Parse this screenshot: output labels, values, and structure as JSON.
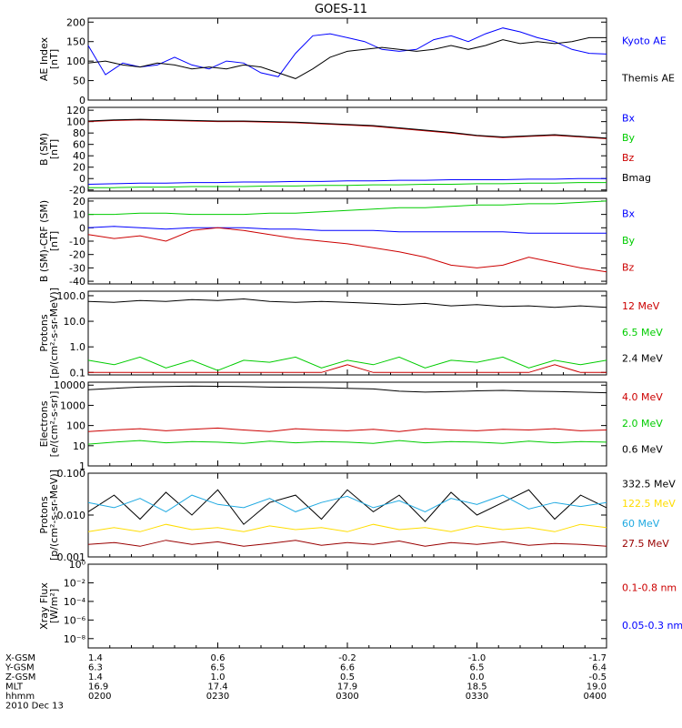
{
  "title": "GOES-11",
  "footer": {
    "rows": [
      {
        "label": "X-GSM",
        "values": [
          "1.4",
          "0.6",
          "-0.2",
          "-1.0",
          "-1.7"
        ]
      },
      {
        "label": "Y-GSM",
        "values": [
          "6.3",
          "6.5",
          "6.6",
          "6.5",
          "6.4"
        ]
      },
      {
        "label": "Z-GSM",
        "values": [
          "1.4",
          "1.0",
          "0.5",
          "0.0",
          "-0.5"
        ]
      },
      {
        "label": "MLT",
        "values": [
          "16.9",
          "17.4",
          "17.9",
          "18.5",
          "19.0"
        ]
      },
      {
        "label": "hhmm",
        "values": [
          "0200",
          "0230",
          "0300",
          "0330",
          "0400"
        ]
      }
    ],
    "date": "2010 Dec 13"
  },
  "chart_data": [
    {
      "type": "line",
      "ylabel": "AE Index\n[nT]",
      "ylog": false,
      "ylim": [
        0,
        210
      ],
      "yticks": [
        0,
        50,
        100,
        150,
        200
      ],
      "ytick_labels": [
        "0",
        "50",
        "100",
        "150",
        "200"
      ],
      "x": [
        0,
        4,
        8,
        12,
        16,
        20,
        24,
        28,
        32,
        36,
        40,
        44,
        48,
        52,
        56,
        60,
        64,
        68,
        72,
        76,
        80,
        84,
        88,
        92,
        96,
        100,
        104,
        108,
        112,
        116,
        120
      ],
      "series": [
        {
          "name": "Kyoto AE",
          "color": "#0000ff",
          "values": [
            140,
            65,
            95,
            85,
            90,
            110,
            90,
            80,
            100,
            95,
            70,
            60,
            120,
            165,
            170,
            160,
            150,
            130,
            125,
            130,
            155,
            165,
            150,
            170,
            185,
            175,
            160,
            150,
            130,
            120,
            118
          ]
        },
        {
          "name": "Themis AE",
          "color": "#000000",
          "values": [
            95,
            100,
            90,
            85,
            95,
            90,
            80,
            85,
            80,
            90,
            85,
            70,
            55,
            80,
            110,
            125,
            130,
            135,
            130,
            125,
            130,
            140,
            130,
            140,
            155,
            145,
            150,
            145,
            150,
            160,
            160
          ]
        }
      ]
    },
    {
      "type": "line",
      "ylabel": "B (SM)\n[nT]",
      "ylog": false,
      "ylim": [
        -22,
        125
      ],
      "yticks": [
        -20,
        0,
        20,
        40,
        60,
        80,
        100,
        120
      ],
      "ytick_labels": [
        "-20",
        "0",
        "20",
        "40",
        "60",
        "80",
        "100",
        "120"
      ],
      "x": [
        0,
        6,
        12,
        18,
        24,
        30,
        36,
        42,
        48,
        54,
        60,
        66,
        72,
        78,
        84,
        90,
        96,
        102,
        108,
        114,
        120
      ],
      "series": [
        {
          "name": "Bx",
          "color": "#0000ff",
          "values": [
            -10,
            -9,
            -8,
            -8,
            -7,
            -7,
            -6,
            -6,
            -5,
            -5,
            -4,
            -4,
            -3,
            -3,
            -2,
            -2,
            -2,
            -1,
            -1,
            0,
            0
          ]
        },
        {
          "name": "By",
          "color": "#00cc00",
          "values": [
            -16,
            -16,
            -15,
            -15,
            -14,
            -14,
            -14,
            -13,
            -13,
            -12,
            -12,
            -11,
            -11,
            -10,
            -10,
            -9,
            -9,
            -8,
            -8,
            -7,
            -7
          ]
        },
        {
          "name": "Bz",
          "color": "#cc0000",
          "values": [
            100,
            102,
            103,
            102,
            101,
            100,
            100,
            99,
            98,
            96,
            94,
            92,
            88,
            84,
            80,
            75,
            72,
            74,
            76,
            73,
            70
          ]
        },
        {
          "name": "Bmag",
          "color": "#000000",
          "values": [
            101,
            103,
            104,
            103,
            102,
            101,
            101,
            100,
            99,
            97,
            95,
            93,
            89,
            85,
            81,
            76,
            73,
            75,
            77,
            74,
            71
          ]
        }
      ]
    },
    {
      "type": "line",
      "ylabel": "B (SM)-CRF (SM)\n[nT]",
      "ylog": false,
      "ylim": [
        -42,
        22
      ],
      "yticks": [
        -40,
        -30,
        -20,
        -10,
        0,
        10,
        20
      ],
      "ytick_labels": [
        "-40",
        "-30",
        "-20",
        "-10",
        "0",
        "10",
        "20"
      ],
      "x": [
        0,
        6,
        12,
        18,
        24,
        30,
        36,
        42,
        48,
        54,
        60,
        66,
        72,
        78,
        84,
        90,
        96,
        102,
        108,
        114,
        120
      ],
      "series": [
        {
          "name": "Bx",
          "color": "#0000ff",
          "values": [
            0,
            1,
            0,
            -1,
            0,
            0,
            0,
            -1,
            -1,
            -2,
            -2,
            -2,
            -3,
            -3,
            -3,
            -3,
            -3,
            -4,
            -4,
            -4,
            -4
          ]
        },
        {
          "name": "By",
          "color": "#00cc00",
          "values": [
            10,
            10,
            11,
            11,
            10,
            10,
            10,
            11,
            11,
            12,
            13,
            14,
            15,
            15,
            16,
            17,
            17,
            18,
            18,
            19,
            20
          ]
        },
        {
          "name": "Bz",
          "color": "#cc0000",
          "values": [
            -5,
            -8,
            -6,
            -10,
            -2,
            0,
            -2,
            -5,
            -8,
            -10,
            -12,
            -15,
            -18,
            -22,
            -28,
            -30,
            -28,
            -22,
            -26,
            -30,
            -33
          ]
        }
      ]
    },
    {
      "type": "line",
      "ylabel": "Protons\n[p/(cm²-s-sr-MeV)]",
      "ylog": true,
      "ylim": [
        0.08,
        150
      ],
      "yticks": [
        0.1,
        1,
        10,
        100
      ],
      "ytick_labels": [
        "0.1",
        "1.0",
        "10.0",
        "100.0"
      ],
      "x": [
        0,
        6,
        12,
        18,
        24,
        30,
        36,
        42,
        48,
        54,
        60,
        66,
        72,
        78,
        84,
        90,
        96,
        102,
        108,
        114,
        120
      ],
      "series": [
        {
          "name": "12 MeV",
          "color": "#cc0000",
          "values": [
            0.1,
            0.1,
            0.1,
            0.1,
            0.1,
            0.1,
            0.1,
            0.1,
            0.1,
            0.1,
            0.2,
            0.1,
            0.1,
            0.1,
            0.1,
            0.1,
            0.1,
            0.1,
            0.2,
            0.1,
            0.1
          ]
        },
        {
          "name": "6.5 MeV",
          "color": "#00cc00",
          "values": [
            0.3,
            0.2,
            0.4,
            0.15,
            0.3,
            0.12,
            0.3,
            0.25,
            0.4,
            0.15,
            0.3,
            0.2,
            0.4,
            0.15,
            0.3,
            0.25,
            0.4,
            0.15,
            0.3,
            0.2,
            0.3
          ]
        },
        {
          "name": "2.4 MeV",
          "color": "#000000",
          "values": [
            60,
            55,
            65,
            60,
            70,
            65,
            75,
            60,
            55,
            60,
            55,
            50,
            45,
            50,
            40,
            45,
            38,
            40,
            35,
            40,
            35
          ]
        }
      ]
    },
    {
      "type": "line",
      "ylabel": "Electrons\n[e/(cm²-s-sr)]",
      "ylog": true,
      "ylim": [
        1,
        14000
      ],
      "yticks": [
        1,
        10,
        100,
        1000,
        10000
      ],
      "ytick_labels": [
        "1",
        "10",
        "100",
        "1000",
        "10000"
      ],
      "x": [
        0,
        6,
        12,
        18,
        24,
        30,
        36,
        42,
        48,
        54,
        60,
        66,
        72,
        78,
        84,
        90,
        96,
        102,
        108,
        114,
        120
      ],
      "series": [
        {
          "name": "4.0 MeV",
          "color": "#cc0000",
          "values": [
            50,
            60,
            70,
            55,
            65,
            75,
            60,
            50,
            70,
            60,
            55,
            65,
            50,
            70,
            60,
            55,
            65,
            60,
            70,
            55,
            60
          ]
        },
        {
          "name": "2.0 MeV",
          "color": "#00cc00",
          "values": [
            12,
            15,
            18,
            14,
            16,
            15,
            13,
            17,
            14,
            16,
            15,
            13,
            18,
            14,
            16,
            15,
            13,
            17,
            14,
            16,
            15
          ]
        },
        {
          "name": "0.6 MeV",
          "color": "#000000",
          "values": [
            6000,
            7000,
            8000,
            8500,
            9000,
            8800,
            8500,
            8000,
            7800,
            7500,
            7000,
            6500,
            5000,
            4500,
            4800,
            5200,
            5500,
            5000,
            4800,
            4500,
            4200
          ]
        }
      ]
    },
    {
      "type": "line",
      "ylabel": "Protons\n[p/(cm²-s-sr-MeV)]",
      "ylog": true,
      "ylim": [
        0.001,
        0.1
      ],
      "yticks": [
        0.001,
        0.01,
        0.1
      ],
      "ytick_labels": [
        "0.001",
        "0.010",
        "0.100"
      ],
      "x": [
        0,
        6,
        12,
        18,
        24,
        30,
        36,
        42,
        48,
        54,
        60,
        66,
        72,
        78,
        84,
        90,
        96,
        102,
        108,
        114,
        120
      ],
      "series": [
        {
          "name": "332.5 MeV",
          "color": "#000000",
          "values": [
            0.012,
            0.03,
            0.008,
            0.035,
            0.01,
            0.04,
            0.006,
            0.02,
            0.03,
            0.008,
            0.04,
            0.012,
            0.03,
            0.007,
            0.035,
            0.01,
            0.02,
            0.04,
            0.008,
            0.03,
            0.015
          ]
        },
        {
          "name": "122.5 MeV",
          "color": "#ffdd00",
          "values": [
            0.004,
            0.005,
            0.004,
            0.006,
            0.0045,
            0.005,
            0.004,
            0.0055,
            0.0045,
            0.005,
            0.004,
            0.006,
            0.0045,
            0.005,
            0.004,
            0.0055,
            0.0045,
            0.005,
            0.004,
            0.006,
            0.005
          ]
        },
        {
          "name": "60 MeV",
          "color": "#1fa9e1",
          "values": [
            0.02,
            0.015,
            0.025,
            0.012,
            0.03,
            0.018,
            0.015,
            0.025,
            0.012,
            0.02,
            0.028,
            0.015,
            0.022,
            0.012,
            0.025,
            0.018,
            0.03,
            0.014,
            0.02,
            0.016,
            0.02
          ]
        },
        {
          "name": "27.5 MeV",
          "color": "#990000",
          "values": [
            0.002,
            0.0022,
            0.0018,
            0.0025,
            0.002,
            0.0023,
            0.0018,
            0.0021,
            0.0025,
            0.0019,
            0.0022,
            0.002,
            0.0024,
            0.0018,
            0.0022,
            0.002,
            0.0023,
            0.0019,
            0.0021,
            0.002,
            0.0018
          ]
        }
      ]
    },
    {
      "type": "line",
      "ylabel": "Xray Flux\n[W/m²]",
      "ylog": true,
      "ylim": [
        1e-09,
        1
      ],
      "yticks": [
        1e-08,
        1e-06,
        0.0001,
        0.01,
        1
      ],
      "ytick_labels": [
        "10⁻⁸",
        "10⁻⁶",
        "10⁻⁴",
        "10⁻²",
        "10⁰"
      ],
      "x": [],
      "series": [
        {
          "name": "0.1-0.8 nm",
          "color": "#cc0000",
          "values": []
        },
        {
          "name": "0.05-0.3 nm",
          "color": "#0000ff",
          "values": []
        }
      ]
    }
  ]
}
